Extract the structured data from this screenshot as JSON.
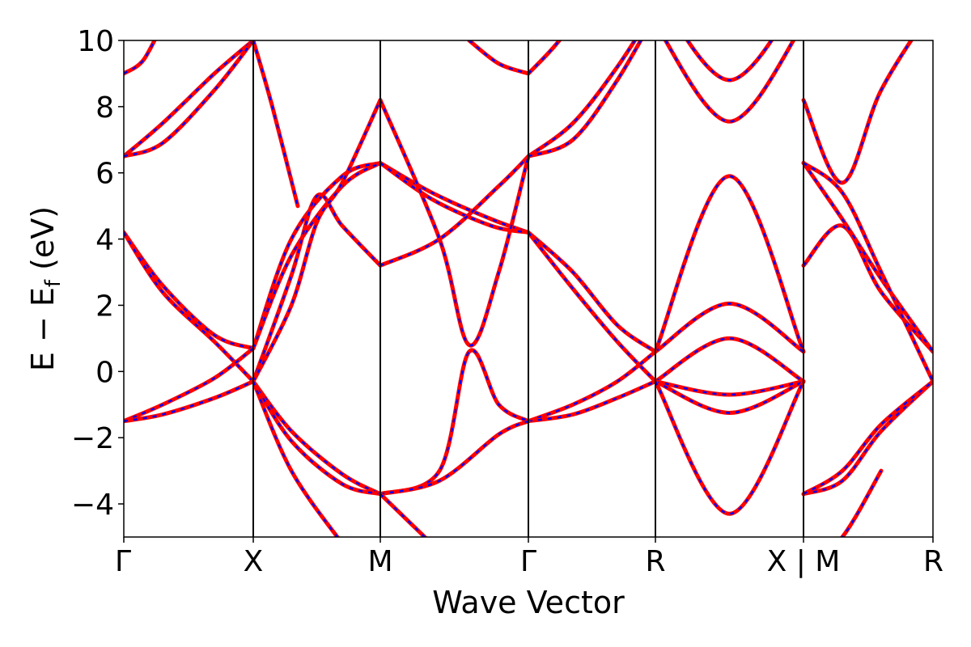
{
  "chart_data": {
    "type": "line",
    "title": "",
    "xlabel": "Wave Vector",
    "ylabel": "E − E_f (eV)",
    "ylabel_parts": {
      "main": "E − E",
      "sub": "f",
      "unit": " (eV)"
    },
    "ylim": [
      -5,
      10
    ],
    "yticks": [
      -4,
      -2,
      0,
      2,
      4,
      6,
      8,
      10
    ],
    "ytick_labels": [
      "−4",
      "−2",
      "0",
      "2",
      "4",
      "6",
      "8",
      "10"
    ],
    "k_points": [
      {
        "label": "Γ",
        "k": 0
      },
      {
        "label": "X",
        "k": 1
      },
      {
        "label": "M",
        "k": 2
      },
      {
        "label": "Γ",
        "k": 3
      },
      {
        "label": "R",
        "k": 4
      },
      {
        "label": "X | M",
        "k": 5
      },
      {
        "label": "R",
        "k": 6
      }
    ],
    "grid": false,
    "legend": "none",
    "colors": {
      "primary": "#ff0000",
      "overlay": "#0000ff",
      "divider": "#000000"
    },
    "series": [
      {
        "segments": [
          {
            "k": [
              0,
              0.3,
              0.7,
              1
            ],
            "e": [
              4.2,
              2.6,
              1.1,
              0.7
            ]
          },
          {
            "k": [
              1,
              1.3,
              1.7,
              2
            ],
            "e": [
              0.7,
              4.0,
              5.9,
              6.3
            ]
          },
          {
            "k": [
              2,
              2.35,
              2.75,
              3
            ],
            "e": [
              6.3,
              5.4,
              4.6,
              4.2
            ]
          },
          {
            "k": [
              3,
              3.35,
              3.7,
              4
            ],
            "e": [
              4.2,
              3.0,
              1.4,
              0.6
            ]
          },
          {
            "k": [
              4,
              4.5,
              5
            ],
            "e": [
              0.6,
              5.9,
              0.6
            ]
          },
          {
            "k": [
              5,
              5.3,
              5.6,
              6
            ],
            "e": [
              3.2,
              4.4,
              2.4,
              0.6
            ]
          }
        ]
      },
      {
        "segments": [
          {
            "k": [
              0,
              0.3,
              0.7,
              1
            ],
            "e": [
              4.2,
              2.4,
              0.9,
              -0.3
            ]
          },
          {
            "k": [
              1,
              1.3,
              1.7,
              2
            ],
            "e": [
              0.7,
              3.5,
              5.6,
              6.3
            ]
          },
          {
            "k": [
              2,
              2.35,
              2.75,
              3
            ],
            "e": [
              6.3,
              5.2,
              4.4,
              4.2
            ]
          },
          {
            "k": [
              3,
              3.35,
              3.7,
              4
            ],
            "e": [
              4.2,
              2.5,
              0.9,
              -0.3
            ]
          },
          {
            "k": [
              4,
              4.5,
              5
            ],
            "e": [
              0.6,
              2.05,
              0.6
            ]
          },
          {
            "k": [
              5,
              5.3,
              5.6,
              6
            ],
            "e": [
              6.3,
              4.6,
              2.8,
              0.6
            ]
          }
        ]
      },
      {
        "segments": [
          {
            "k": [
              0,
              0.3,
              0.7,
              1
            ],
            "e": [
              -1.5,
              -1.0,
              -0.2,
              0.7
            ]
          },
          {
            "k": [
              1,
              1.3,
              1.5,
              1.7,
              2
            ],
            "e": [
              -0.3,
              2.9,
              5.3,
              4.4,
              3.2
            ]
          },
          {
            "k": [
              2,
              2.4,
              2.8,
              3
            ],
            "e": [
              3.2,
              4.0,
              5.6,
              6.5
            ]
          },
          {
            "k": [
              3,
              3.35,
              3.7,
              4
            ],
            "e": [
              -1.5,
              -1.0,
              -0.3,
              0.6
            ]
          },
          {
            "k": [
              4,
              4.5,
              5
            ],
            "e": [
              -0.3,
              1.0,
              -0.3
            ]
          },
          {
            "k": [
              5,
              5.3,
              5.6,
              6
            ],
            "e": [
              6.3,
              5.4,
              3.0,
              -0.3
            ]
          }
        ]
      },
      {
        "segments": [
          {
            "k": [
              0,
              0.3,
              0.7,
              1
            ],
            "e": [
              -1.5,
              -1.3,
              -0.8,
              -0.3
            ]
          },
          {
            "k": [
              1,
              1.3,
              1.5,
              1.7,
              2
            ],
            "e": [
              -0.3,
              2.0,
              4.5,
              5.7,
              8.2
            ]
          },
          {
            "k": [
              2,
              2.4,
              2.6,
              2.8,
              3
            ],
            "e": [
              8.2,
              4.0,
              0.8,
              3.0,
              6.5
            ]
          },
          {
            "k": [
              3,
              3.35,
              3.7,
              4
            ],
            "e": [
              -1.5,
              -1.3,
              -0.8,
              -0.3
            ]
          },
          {
            "k": [
              4,
              4.5,
              5
            ],
            "e": [
              -0.3,
              -0.7,
              -0.3
            ]
          },
          {
            "k": [
              5,
              5.3,
              5.6,
              6
            ],
            "e": [
              8.2,
              5.7,
              8.5,
              11.0
            ]
          }
        ]
      },
      {
        "segments": [
          {
            "k": [
              0,
              0.3,
              0.7,
              1
            ],
            "e": [
              6.5,
              7.5,
              9.0,
              10.0
            ]
          },
          {
            "k": [
              1,
              1.3,
              1.7,
              2
            ],
            "e": [
              -0.3,
              -1.8,
              -3.1,
              -3.7
            ]
          },
          {
            "k": [
              2,
              2.4,
              2.6,
              2.8,
              3
            ],
            "e": [
              -3.7,
              -3.0,
              0.6,
              -1.0,
              -1.5
            ]
          },
          {
            "k": [
              3,
              3.35,
              3.7,
              4
            ],
            "e": [
              6.5,
              7.5,
              9.2,
              11.0
            ]
          },
          {
            "k": [
              4,
              4.5,
              5
            ],
            "e": [
              -0.3,
              -1.25,
              -0.3
            ]
          },
          {
            "k": [
              5,
              5.3,
              5.6,
              6
            ],
            "e": [
              -3.7,
              -3.3,
              -1.8,
              -0.3
            ]
          }
        ]
      },
      {
        "segments": [
          {
            "k": [
              0,
              0.3,
              0.7,
              1
            ],
            "e": [
              6.5,
              6.9,
              8.5,
              10.0
            ]
          },
          {
            "k": [
              1,
              1.3,
              1.7,
              2
            ],
            "e": [
              -0.3,
              -2.1,
              -3.4,
              -3.7
            ]
          },
          {
            "k": [
              2,
              2.4,
              2.8,
              3
            ],
            "e": [
              -3.7,
              -3.3,
              -1.9,
              -1.5
            ]
          },
          {
            "k": [
              3,
              3.35,
              3.7,
              4
            ],
            "e": [
              6.5,
              7.0,
              8.8,
              10.8
            ]
          },
          {
            "k": [
              4,
              4.5,
              5
            ],
            "e": [
              -0.3,
              -4.3,
              -0.3
            ]
          },
          {
            "k": [
              5,
              5.3,
              5.6,
              6
            ],
            "e": [
              -3.7,
              -3.0,
              -1.6,
              -0.3
            ]
          }
        ]
      },
      {
        "segments": [
          {
            "k": [
              0,
              0.15,
              0.3
            ],
            "e": [
              9.0,
              9.4,
              10.5
            ]
          },
          {
            "k": [
              1,
              1.15,
              1.35
            ],
            "e": [
              10.0,
              8.0,
              5.0
            ]
          },
          {
            "k": [
              2,
              2.3,
              2.6
            ],
            "e": [
              -3.7,
              -5.0,
              -6.3
            ]
          },
          {
            "k": [
              2.6,
              2.8,
              3
            ],
            "e": [
              10.0,
              9.3,
              9.0
            ]
          },
          {
            "k": [
              4,
              4.5,
              5
            ],
            "e": [
              10.5,
              7.55,
              10.5
            ]
          },
          {
            "k": [
              5,
              5.3,
              5.6
            ],
            "e": [
              -6.0,
              -5.0,
              -3.0
            ]
          }
        ]
      },
      {
        "segments": [
          {
            "k": [
              1,
              1.3,
              1.7
            ],
            "e": [
              -0.3,
              -3.0,
              -5.2
            ]
          },
          {
            "k": [
              3,
              3.2,
              3.45
            ],
            "e": [
              9.0,
              9.8,
              11.0
            ]
          },
          {
            "k": [
              4,
              4.5,
              5
            ],
            "e": [
              11.5,
              8.8,
              11.5
            ]
          }
        ]
      }
    ]
  }
}
